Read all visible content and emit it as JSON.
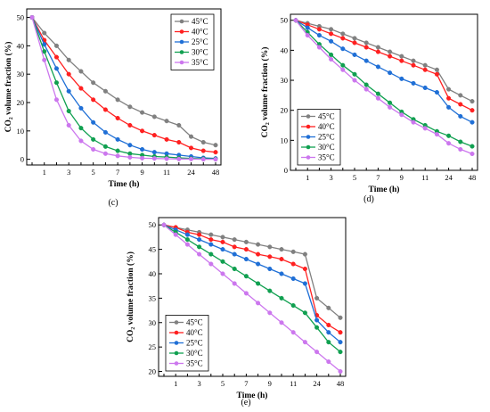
{
  "chart_data": [
    {
      "type": "line",
      "caption": "(c)",
      "xlabel": "Time (h)",
      "ylabel": "CO₂ volume fraction (%)",
      "x": [
        "0",
        "1",
        "2",
        "3",
        "4",
        "5",
        "6",
        "7",
        "8",
        "9",
        "10",
        "11",
        "12",
        "24",
        "36",
        "48"
      ],
      "x_tick_labels": [
        "1",
        "3",
        "5",
        "7",
        "9",
        "11",
        "24",
        "48"
      ],
      "y_tick_labels": [
        "0",
        "10",
        "20",
        "30",
        "40",
        "50"
      ],
      "ylim": [
        -2,
        53
      ],
      "legend_position": "top-right",
      "series": [
        {
          "name": "45°C",
          "color": "#808080",
          "values": [
            50,
            44.5,
            40,
            35,
            31,
            27,
            24,
            21,
            18.5,
            16.5,
            15,
            13.5,
            12,
            8,
            6,
            5
          ]
        },
        {
          "name": "40°C",
          "color": "#ff2020",
          "values": [
            50,
            42,
            36,
            30,
            25,
            21,
            17.5,
            14.5,
            12,
            10,
            8.5,
            7,
            6,
            4,
            3,
            2.5
          ]
        },
        {
          "name": "25°C",
          "color": "#1f6fd6",
          "values": [
            50,
            40.5,
            32,
            24,
            18,
            13,
            9.5,
            7,
            5,
            3.5,
            2.5,
            2,
            1.5,
            1,
            0.5,
            0.3
          ]
        },
        {
          "name": "30°C",
          "color": "#10a050",
          "values": [
            50,
            38,
            27,
            17,
            11,
            7,
            4.5,
            3,
            2,
            1.5,
            1,
            0.8,
            0.5,
            0.3,
            0.2,
            0.1
          ]
        },
        {
          "name": "35°C",
          "color": "#cc77ee",
          "values": [
            50,
            35,
            21,
            12,
            6.5,
            3.5,
            2,
            1.2,
            0.7,
            0.4,
            0.3,
            0.2,
            0.1,
            0.1,
            0,
            0
          ]
        }
      ]
    },
    {
      "type": "line",
      "caption": "(d)",
      "xlabel": "Time (h)",
      "ylabel": "CO₂ volume fraction (%)",
      "x": [
        "0",
        "1",
        "2",
        "3",
        "4",
        "5",
        "6",
        "7",
        "8",
        "9",
        "10",
        "11",
        "12",
        "24",
        "36",
        "48"
      ],
      "x_tick_labels": [
        "1",
        "3",
        "5",
        "7",
        "9",
        "11",
        "24",
        "48"
      ],
      "y_tick_labels": [
        "0",
        "10",
        "20",
        "30",
        "40",
        "50"
      ],
      "ylim": [
        0,
        52
      ],
      "legend_position": "bottom-left",
      "series": [
        {
          "name": "45°C",
          "color": "#808080",
          "values": [
            50,
            49,
            48,
            47,
            45.5,
            44,
            42.5,
            41,
            39.5,
            38,
            36.5,
            35,
            33.5,
            27,
            25,
            23
          ]
        },
        {
          "name": "40°C",
          "color": "#ff2020",
          "values": [
            50,
            48.5,
            47,
            45.5,
            44,
            42.5,
            41,
            39.5,
            38,
            36.5,
            35,
            33.5,
            32,
            24,
            22,
            20
          ]
        },
        {
          "name": "25°C",
          "color": "#1f6fd6",
          "values": [
            50,
            47.5,
            45,
            43,
            40.5,
            38.5,
            36.5,
            34.5,
            32.5,
            30.5,
            29,
            27.5,
            26,
            21,
            18,
            16
          ]
        },
        {
          "name": "30°C",
          "color": "#10a050",
          "values": [
            50,
            46,
            42,
            38.5,
            35,
            32,
            28.5,
            25.5,
            22.5,
            19.5,
            17,
            15,
            13,
            11.5,
            9.5,
            8
          ]
        },
        {
          "name": "35°C",
          "color": "#cc77ee",
          "values": [
            50,
            45,
            41,
            37,
            33.5,
            30,
            27,
            24,
            21,
            18.5,
            16,
            14,
            12,
            9,
            7,
            5.5
          ]
        }
      ]
    },
    {
      "type": "line",
      "caption": "(e)",
      "xlabel": "Time (h)",
      "ylabel": "CO₂ volume fraction (%)",
      "x": [
        "0",
        "1",
        "2",
        "3",
        "4",
        "5",
        "6",
        "7",
        "8",
        "9",
        "10",
        "11",
        "12",
        "24",
        "36",
        "48"
      ],
      "x_tick_labels": [
        "1",
        "3",
        "5",
        "7",
        "9",
        "11",
        "24",
        "48"
      ],
      "y_tick_labels": [
        "20",
        "25",
        "30",
        "35",
        "40",
        "45",
        "50"
      ],
      "ylim": [
        19,
        51.5
      ],
      "legend_position": "bottom-left",
      "series": [
        {
          "name": "45°C",
          "color": "#808080",
          "values": [
            50,
            49.5,
            49,
            48.5,
            48,
            47.5,
            47,
            46.5,
            46,
            45.5,
            45,
            44.5,
            44,
            35,
            33,
            31
          ]
        },
        {
          "name": "40°C",
          "color": "#ff2020",
          "values": [
            50,
            49.5,
            48.5,
            48,
            47,
            46.5,
            45.5,
            45,
            44,
            43.5,
            43,
            42,
            41,
            31.5,
            29.5,
            28
          ]
        },
        {
          "name": "25°C",
          "color": "#1f6fd6",
          "values": [
            50,
            49,
            48,
            47,
            46,
            45,
            44,
            43,
            42,
            41,
            40,
            39,
            38,
            30.5,
            28,
            26
          ]
        },
        {
          "name": "30°C",
          "color": "#10a050",
          "values": [
            50,
            48.5,
            47,
            45.5,
            44,
            42.5,
            41,
            39.5,
            38,
            36.5,
            35,
            33.5,
            32,
            29,
            26,
            24
          ]
        },
        {
          "name": "35°C",
          "color": "#cc77ee",
          "values": [
            50,
            48,
            46,
            44,
            42,
            40,
            38,
            36,
            34,
            32,
            30,
            28,
            26,
            24,
            22,
            20
          ]
        }
      ]
    }
  ]
}
